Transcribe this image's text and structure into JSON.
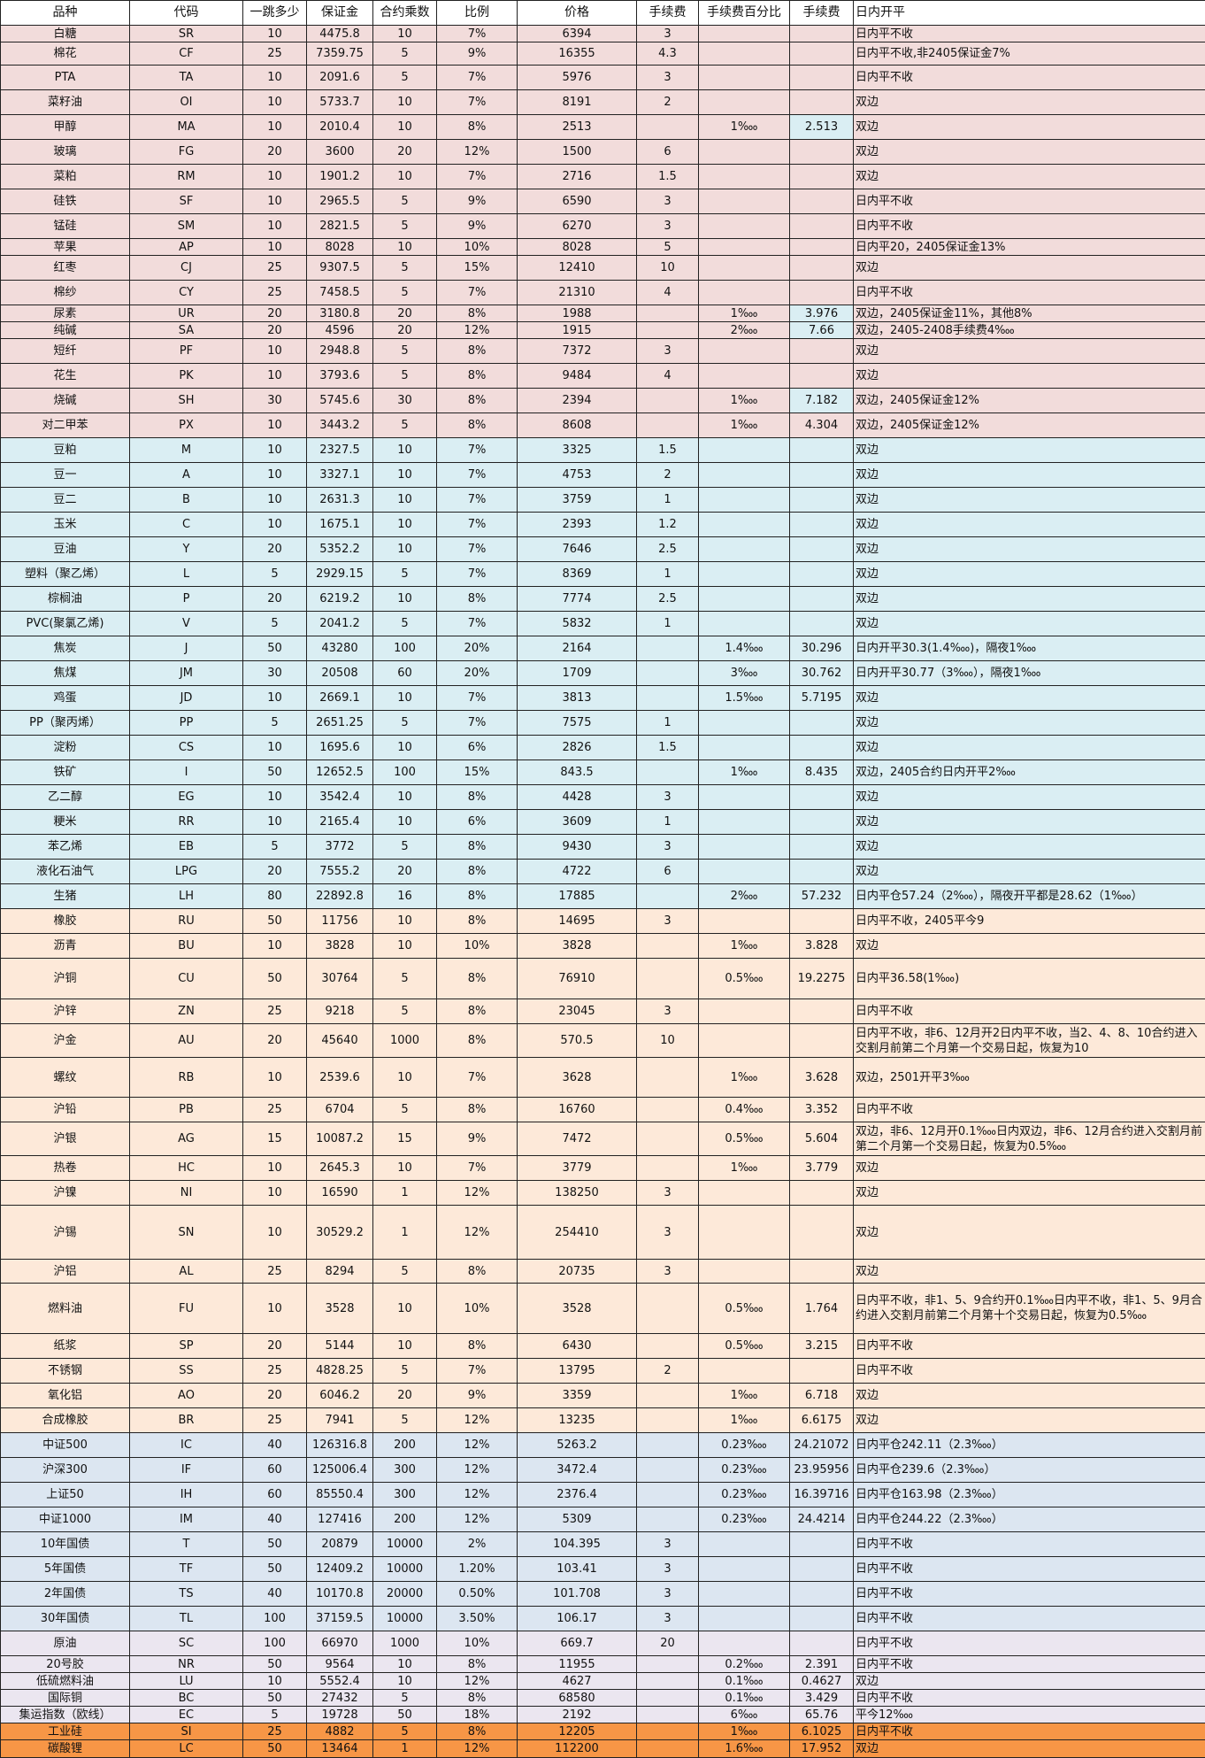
{
  "colors": {
    "pink": "#f2dcdb",
    "blue": "#daeef3",
    "peach": "#fde9d9",
    "steel": "#dce6f1",
    "lavender": "#ebe6f0",
    "orange": "#f79646",
    "highlight": "#daeef3"
  },
  "columns": [
    "品种",
    "代码",
    "一跳多少",
    "保证金",
    "合约乘数",
    "比例",
    "价格",
    "手续费",
    "手续费百分比",
    "手续费",
    "日内开平"
  ],
  "rows": [
    {
      "group": "pink",
      "cells": [
        "白糖",
        "SR",
        "10",
        "4475.8",
        "10",
        "7%",
        "6394",
        "3",
        "",
        "",
        "日内平不收"
      ]
    },
    {
      "group": "pink",
      "cells": [
        "棉花",
        "CF",
        "25",
        "7359.75",
        "5",
        "9%",
        "16355",
        "4.3",
        "",
        "",
        "日内平不收,非2405保证金7%"
      ]
    },
    {
      "group": "pink",
      "cells": [
        "PTA",
        "TA",
        "10",
        "2091.6",
        "5",
        "7%",
        "5976",
        "3",
        "",
        "",
        "日内平不收"
      ]
    },
    {
      "group": "pink",
      "cells": [
        "菜籽油",
        "OI",
        "10",
        "5733.7",
        "10",
        "7%",
        "8191",
        "2",
        "",
        "",
        "双边"
      ]
    },
    {
      "group": "pink",
      "highlight": true,
      "cells": [
        "甲醇",
        "MA",
        "10",
        "2010.4",
        "10",
        "8%",
        "2513",
        "",
        "1‱",
        "2.513",
        "双边"
      ]
    },
    {
      "group": "pink",
      "cells": [
        "玻璃",
        "FG",
        "20",
        "3600",
        "20",
        "12%",
        "1500",
        "6",
        "",
        "",
        "双边"
      ]
    },
    {
      "group": "pink",
      "cells": [
        "菜粕",
        "RM",
        "10",
        "1901.2",
        "10",
        "7%",
        "2716",
        "1.5",
        "",
        "",
        "双边"
      ]
    },
    {
      "group": "pink",
      "cells": [
        "硅铁",
        "SF",
        "10",
        "2965.5",
        "5",
        "9%",
        "6590",
        "3",
        "",
        "",
        "日内平不收"
      ]
    },
    {
      "group": "pink",
      "cells": [
        "锰硅",
        "SM",
        "10",
        "2821.5",
        "5",
        "9%",
        "6270",
        "3",
        "",
        "",
        "日内平不收"
      ]
    },
    {
      "group": "pink",
      "cells": [
        "苹果",
        "AP",
        "10",
        "8028",
        "10",
        "10%",
        "8028",
        "5",
        "",
        "",
        "日内平20，2405保证金13%"
      ]
    },
    {
      "group": "pink",
      "cells": [
        "红枣",
        "CJ",
        "25",
        "9307.5",
        "5",
        "15%",
        "12410",
        "10",
        "",
        "",
        "双边"
      ]
    },
    {
      "group": "pink",
      "cells": [
        "棉纱",
        "CY",
        "25",
        "7458.5",
        "5",
        "7%",
        "21310",
        "4",
        "",
        "",
        "日内平不收"
      ]
    },
    {
      "group": "pink",
      "highlight": true,
      "cells": [
        "尿素",
        "UR",
        "20",
        "3180.8",
        "20",
        "8%",
        "1988",
        "",
        "1‱",
        "3.976",
        "双边，2405保证金11%，其他8%"
      ]
    },
    {
      "group": "pink",
      "highlight": true,
      "cells": [
        "纯碱",
        "SA",
        "20",
        "4596",
        "20",
        "12%",
        "1915",
        "",
        "2‱",
        "7.66",
        "双边，2405-2408手续费4‱"
      ]
    },
    {
      "group": "pink",
      "cells": [
        "短纤",
        "PF",
        "10",
        "2948.8",
        "5",
        "8%",
        "7372",
        "3",
        "",
        "",
        "双边"
      ]
    },
    {
      "group": "pink",
      "cells": [
        "花生",
        "PK",
        "10",
        "3793.6",
        "5",
        "8%",
        "9484",
        "4",
        "",
        "",
        "双边"
      ]
    },
    {
      "group": "pink",
      "highlight": true,
      "cells": [
        "烧碱",
        "SH",
        "30",
        "5745.6",
        "30",
        "8%",
        "2394",
        "",
        "1‱",
        "7.182",
        "双边，2405保证金12%"
      ]
    },
    {
      "group": "pink",
      "cells": [
        "对二甲苯",
        "PX",
        "10",
        "3443.2",
        "5",
        "8%",
        "8608",
        "",
        "1‱",
        "4.304",
        "双边，2405保证金12%"
      ]
    },
    {
      "group": "blue",
      "cells": [
        "豆粕",
        "M",
        "10",
        "2327.5",
        "10",
        "7%",
        "3325",
        "1.5",
        "",
        "",
        "双边"
      ]
    },
    {
      "group": "blue",
      "cells": [
        "豆一",
        "A",
        "10",
        "3327.1",
        "10",
        "7%",
        "4753",
        "2",
        "",
        "",
        "双边"
      ]
    },
    {
      "group": "blue",
      "cells": [
        "豆二",
        "B",
        "10",
        "2631.3",
        "10",
        "7%",
        "3759",
        "1",
        "",
        "",
        "双边"
      ]
    },
    {
      "group": "blue",
      "cells": [
        "玉米",
        "C",
        "10",
        "1675.1",
        "10",
        "7%",
        "2393",
        "1.2",
        "",
        "",
        "双边"
      ]
    },
    {
      "group": "blue",
      "cells": [
        "豆油",
        "Y",
        "20",
        "5352.2",
        "10",
        "7%",
        "7646",
        "2.5",
        "",
        "",
        "双边"
      ]
    },
    {
      "group": "blue",
      "cells": [
        "塑料（聚乙烯）",
        "L",
        "5",
        "2929.15",
        "5",
        "7%",
        "8369",
        "1",
        "",
        "",
        "双边"
      ]
    },
    {
      "group": "blue",
      "cells": [
        "棕榈油",
        "P",
        "20",
        "6219.2",
        "10",
        "8%",
        "7774",
        "2.5",
        "",
        "",
        "双边"
      ]
    },
    {
      "group": "blue",
      "cells": [
        "PVC(聚氯乙烯)",
        "V",
        "5",
        "2041.2",
        "5",
        "7%",
        "5832",
        "1",
        "",
        "",
        "双边"
      ]
    },
    {
      "group": "blue",
      "cells": [
        "焦炭",
        "J",
        "50",
        "43280",
        "100",
        "20%",
        "2164",
        "",
        "1.4‱",
        "30.296",
        "日内开平30.3(1.4‱)，隔夜1‱"
      ]
    },
    {
      "group": "blue",
      "cells": [
        "焦煤",
        "JM",
        "30",
        "20508",
        "60",
        "20%",
        "1709",
        "",
        "3‱",
        "30.762",
        "日内开平30.77（3‱），隔夜1‱"
      ]
    },
    {
      "group": "blue",
      "cells": [
        "鸡蛋",
        "JD",
        "10",
        "2669.1",
        "10",
        "7%",
        "3813",
        "",
        "1.5‱",
        "5.7195",
        "双边"
      ]
    },
    {
      "group": "blue",
      "cells": [
        "PP（聚丙烯）",
        "PP",
        "5",
        "2651.25",
        "5",
        "7%",
        "7575",
        "1",
        "",
        "",
        "双边"
      ]
    },
    {
      "group": "blue",
      "cells": [
        "淀粉",
        "CS",
        "10",
        "1695.6",
        "10",
        "6%",
        "2826",
        "1.5",
        "",
        "",
        "双边"
      ]
    },
    {
      "group": "blue",
      "cells": [
        "铁矿",
        "I",
        "50",
        "12652.5",
        "100",
        "15%",
        "843.5",
        "",
        "1‱",
        "8.435",
        "双边，2405合约日内开平2‱"
      ]
    },
    {
      "group": "blue",
      "cells": [
        "乙二醇",
        "EG",
        "10",
        "3542.4",
        "10",
        "8%",
        "4428",
        "3",
        "",
        "",
        "双边"
      ]
    },
    {
      "group": "blue",
      "cells": [
        "粳米",
        "RR",
        "10",
        "2165.4",
        "10",
        "6%",
        "3609",
        "1",
        "",
        "",
        "双边"
      ]
    },
    {
      "group": "blue",
      "cells": [
        "苯乙烯",
        "EB",
        "5",
        "3772",
        "5",
        "8%",
        "9430",
        "3",
        "",
        "",
        "双边"
      ]
    },
    {
      "group": "blue",
      "cells": [
        "液化石油气",
        "LPG",
        "20",
        "7555.2",
        "20",
        "8%",
        "4722",
        "6",
        "",
        "",
        "双边"
      ]
    },
    {
      "group": "blue",
      "cells": [
        "生猪",
        "LH",
        "80",
        "22892.8",
        "16",
        "8%",
        "17885",
        "",
        "2‱",
        "57.232",
        "日内平仓57.24（2‱），隔夜开平都是28.62（1‱）"
      ]
    },
    {
      "group": "peach",
      "cells": [
        "橡胶",
        "RU",
        "50",
        "11756",
        "10",
        "8%",
        "14695",
        "3",
        "",
        "",
        "日内平不收，2405平今9"
      ]
    },
    {
      "group": "peach",
      "cells": [
        "沥青",
        "BU",
        "10",
        "3828",
        "10",
        "10%",
        "3828",
        "",
        "1‱",
        "3.828",
        "双边"
      ]
    },
    {
      "group": "peach",
      "cells": [
        "沪铜",
        "CU",
        "50",
        "30764",
        "5",
        "8%",
        "76910",
        "",
        "0.5‱",
        "19.2275",
        "日内平36.58(1‱)"
      ]
    },
    {
      "group": "peach",
      "cells": [
        "沪锌",
        "ZN",
        "25",
        "9218",
        "5",
        "8%",
        "23045",
        "3",
        "",
        "",
        "日内平不收"
      ]
    },
    {
      "group": "peach",
      "cells": [
        "沪金",
        "AU",
        "20",
        "45640",
        "1000",
        "8%",
        "570.5",
        "10",
        "",
        "",
        "日内平不收，非6、12月开2日内平不收，当2、4、8、10合约进入交割月前第二个月第一个交易日起，恢复为10"
      ]
    },
    {
      "group": "peach",
      "cells": [
        "螺纹",
        "RB",
        "10",
        "2539.6",
        "10",
        "7%",
        "3628",
        "",
        "1‱",
        "3.628",
        "双边，2501开平3‱"
      ]
    },
    {
      "group": "peach",
      "cells": [
        "沪铅",
        "PB",
        "25",
        "6704",
        "5",
        "8%",
        "16760",
        "",
        "0.4‱",
        "3.352",
        "日内平不收"
      ]
    },
    {
      "group": "peach",
      "cells": [
        "沪银",
        "AG",
        "15",
        "10087.2",
        "15",
        "9%",
        "7472",
        "",
        "0.5‱",
        "5.604",
        "双边，非6、12月开0.1‱日内双边，非6、12月合约进入交割月前第二个月第一个交易日起，恢复为0.5‱"
      ]
    },
    {
      "group": "peach",
      "cells": [
        "热卷",
        "HC",
        "10",
        "2645.3",
        "10",
        "7%",
        "3779",
        "",
        "1‱",
        "3.779",
        "双边"
      ]
    },
    {
      "group": "peach",
      "cells": [
        "沪镍",
        "NI",
        "10",
        "16590",
        "1",
        "12%",
        "138250",
        "3",
        "",
        "",
        "双边"
      ]
    },
    {
      "group": "peach",
      "cells": [
        "沪锡",
        "SN",
        "10",
        "30529.2",
        "1",
        "12%",
        "254410",
        "3",
        "",
        "",
        "双边"
      ]
    },
    {
      "group": "peach",
      "cells": [
        "沪铝",
        "AL",
        "25",
        "8294",
        "5",
        "8%",
        "20735",
        "3",
        "",
        "",
        "双边"
      ]
    },
    {
      "group": "peach",
      "cells": [
        "燃料油",
        "FU",
        "10",
        "3528",
        "10",
        "10%",
        "3528",
        "",
        "0.5‱",
        "1.764",
        "日内平不收，非1、5、9合约开0.1‱日内平不收，非1、5、9月合约进入交割月前第二个月第十个交易日起，恢复为0.5‱"
      ]
    },
    {
      "group": "peach",
      "cells": [
        "纸浆",
        "SP",
        "20",
        "5144",
        "10",
        "8%",
        "6430",
        "",
        "0.5‱",
        "3.215",
        "日内平不收"
      ]
    },
    {
      "group": "peach",
      "cells": [
        "不锈钢",
        "SS",
        "25",
        "4828.25",
        "5",
        "7%",
        "13795",
        "2",
        "",
        "",
        "日内平不收"
      ]
    },
    {
      "group": "peach",
      "cells": [
        "氧化铝",
        "AO",
        "20",
        "6046.2",
        "20",
        "9%",
        "3359",
        "",
        "1‱",
        "6.718",
        "双边"
      ]
    },
    {
      "group": "peach",
      "cells": [
        "合成橡胶",
        "BR",
        "25",
        "7941",
        "5",
        "12%",
        "13235",
        "",
        "1‱",
        "6.6175",
        "双边"
      ]
    },
    {
      "group": "steel",
      "cells": [
        "中证500",
        "IC",
        "40",
        "126316.8",
        "200",
        "12%",
        "5263.2",
        "",
        "0.23‱",
        "24.21072",
        "日内平仓242.11（2.3‱）"
      ]
    },
    {
      "group": "steel",
      "cells": [
        "沪深300",
        "IF",
        "60",
        "125006.4",
        "300",
        "12%",
        "3472.4",
        "",
        "0.23‱",
        "23.95956",
        "日内平仓239.6（2.3‱）"
      ]
    },
    {
      "group": "steel",
      "cells": [
        "上证50",
        "IH",
        "60",
        "85550.4",
        "300",
        "12%",
        "2376.4",
        "",
        "0.23‱",
        "16.39716",
        "日内平仓163.98（2.3‱）"
      ]
    },
    {
      "group": "steel",
      "cells": [
        "中证1000",
        "IM",
        "40",
        "127416",
        "200",
        "12%",
        "5309",
        "",
        "0.23‱",
        "24.4214",
        "日内平仓244.22（2.3‱）"
      ]
    },
    {
      "group": "steel",
      "cells": [
        "10年国债",
        "T",
        "50",
        "20879",
        "10000",
        "2%",
        "104.395",
        "3",
        "",
        "",
        "日内平不收"
      ]
    },
    {
      "group": "steel",
      "cells": [
        "5年国债",
        "TF",
        "50",
        "12409.2",
        "10000",
        "1.20%",
        "103.41",
        "3",
        "",
        "",
        "日内平不收"
      ]
    },
    {
      "group": "steel",
      "cells": [
        "2年国债",
        "TS",
        "40",
        "10170.8",
        "20000",
        "0.50%",
        "101.708",
        "3",
        "",
        "",
        "日内平不收"
      ]
    },
    {
      "group": "steel",
      "cells": [
        "30年国债",
        "TL",
        "100",
        "37159.5",
        "10000",
        "3.50%",
        "106.17",
        "3",
        "",
        "",
        "日内平不收"
      ]
    },
    {
      "group": "lavender",
      "cells": [
        "原油",
        "SC",
        "100",
        "66970",
        "1000",
        "10%",
        "669.7",
        "20",
        "",
        "",
        "日内平不收"
      ]
    },
    {
      "group": "lavender",
      "cells": [
        "20号胶",
        "NR",
        "50",
        "9564",
        "10",
        "8%",
        "11955",
        "",
        "0.2‱",
        "2.391",
        "日内平不收"
      ]
    },
    {
      "group": "lavender",
      "cells": [
        "低硫燃料油",
        "LU",
        "10",
        "5552.4",
        "10",
        "12%",
        "4627",
        "",
        "0.1‱",
        "0.4627",
        "双边"
      ]
    },
    {
      "group": "lavender",
      "cells": [
        "国际铜",
        "BC",
        "50",
        "27432",
        "5",
        "8%",
        "68580",
        "",
        "0.1‱",
        "3.429",
        "日内平不收"
      ]
    },
    {
      "group": "lavender",
      "cells": [
        "集运指数（欧线）",
        "EC",
        "5",
        "19728",
        "50",
        "18%",
        "2192",
        "",
        "6‱",
        "65.76",
        "平今12‱"
      ]
    },
    {
      "group": "orange",
      "cells": [
        "工业硅",
        "SI",
        "25",
        "4882",
        "5",
        "8%",
        "12205",
        "",
        "1‱",
        "6.1025",
        "日内平不收"
      ]
    },
    {
      "group": "orange",
      "cells": [
        "碳酸锂",
        "LC",
        "50",
        "13464",
        "1",
        "12%",
        "112200",
        "",
        "1.6‱",
        "17.952",
        "双边"
      ]
    }
  ]
}
